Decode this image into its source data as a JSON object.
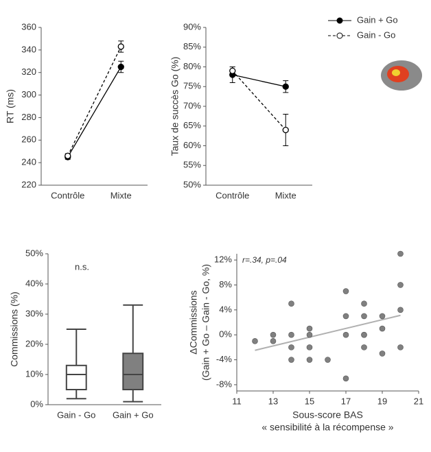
{
  "chart_data": [
    {
      "type": "line",
      "ylabel": "RT (ms)",
      "categories": [
        "Contrôle",
        "Mixte"
      ],
      "ylim": [
        220,
        360
      ],
      "yticks": [
        220,
        240,
        260,
        280,
        300,
        320,
        340,
        360
      ],
      "series": [
        {
          "name": "Gain + Go",
          "color": "#000000",
          "marker_fill": "#000000",
          "dashed": false,
          "values": [
            245,
            325
          ],
          "errors": [
            2,
            5
          ]
        },
        {
          "name": "Gain - Go",
          "color": "#000000",
          "marker_fill": "#ffffff",
          "dashed": true,
          "values": [
            246,
            343
          ],
          "errors": [
            2,
            5
          ]
        }
      ]
    },
    {
      "type": "line",
      "ylabel": "Taux de succès Go (%)",
      "categories": [
        "Contrôle",
        "Mixte"
      ],
      "ylim": [
        50,
        90
      ],
      "yticks": [
        {
          "value": 50,
          "label": "50%"
        },
        {
          "value": 55,
          "label": "55%"
        },
        {
          "value": 60,
          "label": "60%"
        },
        {
          "value": 65,
          "label": "65%"
        },
        {
          "value": 70,
          "label": "70%"
        },
        {
          "value": 75,
          "label": "75%"
        },
        {
          "value": 80,
          "label": "80%"
        },
        {
          "value": 85,
          "label": "85%"
        },
        {
          "value": 90,
          "label": "90%"
        }
      ],
      "series": [
        {
          "color": "#000000",
          "marker_fill": "#000000",
          "dashed": false,
          "values": [
            78,
            75
          ],
          "errors": [
            2,
            1.5
          ]
        },
        {
          "color": "#000000",
          "marker_fill": "#ffffff",
          "dashed": true,
          "values": [
            79,
            64
          ],
          "errors": [
            1,
            4
          ]
        }
      ]
    },
    {
      "type": "box",
      "ylabel": "Commissions (%)",
      "categories": [
        "Gain - Go",
        "Gain + Go"
      ],
      "annotation": "n.s.",
      "ylim": [
        0,
        50
      ],
      "yticks": [
        {
          "value": 0,
          "label": "0%"
        },
        {
          "value": 10,
          "label": "10%"
        },
        {
          "value": 20,
          "label": "20%"
        },
        {
          "value": 30,
          "label": "30%"
        },
        {
          "value": 40,
          "label": "40%"
        },
        {
          "value": 50,
          "label": "50%"
        }
      ],
      "colors": [
        "#ffffff",
        "#808080"
      ],
      "boxes": [
        {
          "min": 2,
          "q1": 5,
          "median": 10,
          "q3": 13,
          "max": 25
        },
        {
          "min": 1,
          "q1": 5,
          "median": 10,
          "q3": 17,
          "max": 33
        }
      ]
    },
    {
      "type": "scatter",
      "ylabel": [
        "ΔCommissions",
        "(Gain + Go – Gain - Go, %)"
      ],
      "xlabel": [
        "Sous-score BAS",
        "« sensibilité à la récompense »"
      ],
      "annotation": "r=.34, p=.04",
      "color": "#808080",
      "fit_color": "#b0b0b0",
      "xlim": [
        11,
        21
      ],
      "xticks": [
        11,
        13,
        15,
        17,
        19,
        21
      ],
      "ylim": [
        -9,
        13
      ],
      "yticks": [
        {
          "value": -8,
          "label": "-8%"
        },
        {
          "value": -4,
          "label": "-4%"
        },
        {
          "value": 0,
          "label": "0%"
        },
        {
          "value": 4,
          "label": "4%"
        },
        {
          "value": 8,
          "label": "8%"
        },
        {
          "value": 12,
          "label": "12%"
        }
      ],
      "x": [
        12,
        13,
        13,
        14,
        14,
        14,
        14,
        15,
        15,
        15,
        15,
        16,
        17,
        17,
        17,
        17,
        18,
        18,
        18,
        18,
        18,
        19,
        19,
        19,
        20,
        20,
        20,
        20
      ],
      "y": [
        -1,
        -1,
        0,
        5,
        0,
        -2,
        -4,
        1,
        0,
        -2,
        -4,
        -4,
        7,
        3,
        0,
        -7,
        5,
        3,
        0,
        0,
        -2,
        3,
        1,
        -3,
        13,
        8,
        4,
        -2
      ]
    }
  ]
}
